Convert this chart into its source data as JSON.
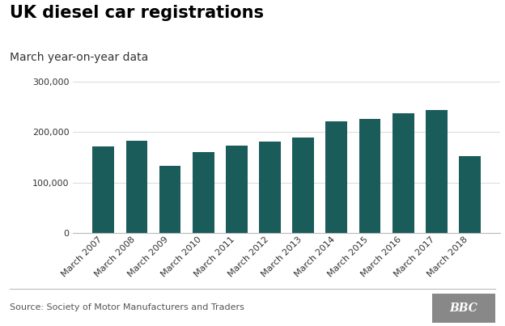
{
  "title": "UK diesel car registrations",
  "subtitle": "March year-on-year data",
  "categories": [
    "March 2007",
    "March 2008",
    "March 2009",
    "March 2010",
    "March 2011",
    "March 2012",
    "March 2013",
    "March 2014",
    "March 2015",
    "March 2016",
    "March 2017",
    "March 2018"
  ],
  "values": [
    172000,
    183000,
    133000,
    160000,
    174000,
    181000,
    190000,
    221000,
    227000,
    238000,
    244000,
    153000
  ],
  "bar_color": "#1a5c5a",
  "background_color": "#ffffff",
  "ylim": [
    0,
    320000
  ],
  "yticks": [
    0,
    100000,
    200000,
    300000
  ],
  "ytick_labels": [
    "0",
    "100,000",
    "200,000",
    "300,000"
  ],
  "source_text": "Source: Society of Motor Manufacturers and Traders",
  "bbc_text": "BBC",
  "title_fontsize": 15,
  "subtitle_fontsize": 10,
  "tick_fontsize": 8,
  "source_fontsize": 8,
  "grid_color": "#dddddd",
  "spine_color": "#bbbbbb",
  "text_color": "#333333",
  "source_color": "#555555",
  "bbc_bg": "#888888"
}
